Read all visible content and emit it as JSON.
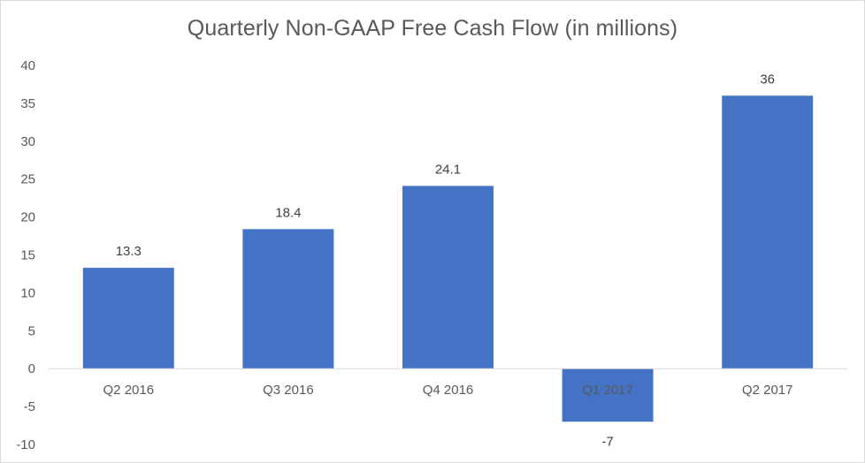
{
  "chart_data": {
    "type": "bar",
    "title": "Quarterly Non-GAAP Free Cash Flow (in millions)",
    "categories": [
      "Q2 2016",
      "Q3 2016",
      "Q4 2016",
      "Q1 2017",
      "Q2 2017"
    ],
    "values": [
      13.3,
      18.4,
      24.1,
      -7,
      36
    ],
    "data_labels": [
      "13.3",
      "18.4",
      "24.1",
      "-7",
      "36"
    ],
    "ylim": [
      -10,
      40
    ],
    "yticks": [
      "40",
      "35",
      "30",
      "25",
      "20",
      "15",
      "10",
      "5",
      "0",
      "-5",
      "-10"
    ],
    "ytick_values": [
      40,
      35,
      30,
      25,
      20,
      15,
      10,
      5,
      0,
      -5,
      -10
    ],
    "grid": false,
    "legend": "none",
    "xlabel": "",
    "ylabel": "",
    "bar_color": "#4472C4",
    "axis_color": "#d9d9d9"
  }
}
